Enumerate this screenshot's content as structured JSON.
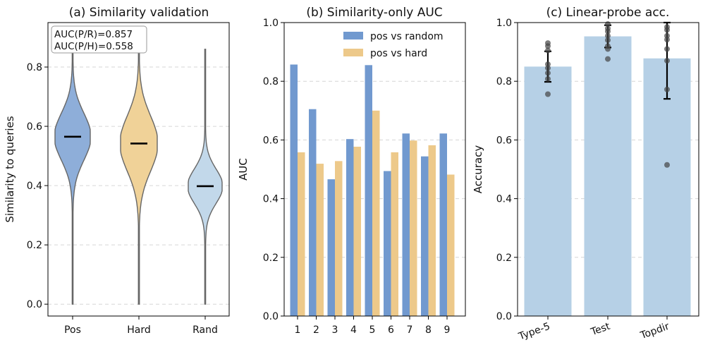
{
  "chart_data": [
    {
      "type": "violin",
      "title": "(a) Similarity validation",
      "xlabel": "",
      "ylabel": "Similarity to queries",
      "categories": [
        "Pos",
        "Hard",
        "Rand"
      ],
      "colors": [
        "#8eaed9",
        "#f0d298",
        "#c2d8ea"
      ],
      "medians": [
        0.565,
        0.542,
        0.398
      ],
      "ranges": [
        [
          0.0,
          0.9
        ],
        [
          0.0,
          0.88
        ],
        [
          0.0,
          0.86
        ]
      ],
      "ylim": [
        -0.04,
        0.95
      ],
      "yticks": [
        "0.0",
        "0.2",
        "0.4",
        "0.6",
        "0.8"
      ],
      "annotation": [
        "AUC(P/R)=0.857",
        "AUC(P/H)=0.558"
      ],
      "grid": true
    },
    {
      "type": "bar",
      "title": "(b) Similarity-only AUC",
      "xlabel": "",
      "ylabel": "AUC",
      "categories": [
        "1",
        "2",
        "3",
        "4",
        "5",
        "6",
        "7",
        "8",
        "9"
      ],
      "series": [
        {
          "name": "pos vs random",
          "color": "#7199cf",
          "values": [
            0.857,
            0.705,
            0.466,
            0.603,
            0.855,
            0.494,
            0.622,
            0.544,
            0.622
          ]
        },
        {
          "name": "pos vs hard",
          "color": "#edc98a",
          "values": [
            0.558,
            0.519,
            0.528,
            0.577,
            0.7,
            0.558,
            0.598,
            0.582,
            0.482
          ]
        }
      ],
      "ylim": [
        0.0,
        1.0
      ],
      "yticks": [
        "0.0",
        "0.2",
        "0.4",
        "0.6",
        "0.8",
        "1.0"
      ],
      "legend": "top-right",
      "grid": true
    },
    {
      "type": "bar",
      "title": "(c) Linear-probe acc.",
      "xlabel": "",
      "ylabel": "Accuracy",
      "categories": [
        "Type-5",
        "Test",
        "Topdir"
      ],
      "color": "#b6d0e6",
      "values": [
        0.85,
        0.953,
        0.878
      ],
      "errors": [
        0.052,
        0.038,
        0.138
      ],
      "points": [
        [
          0.756,
          0.808,
          0.828,
          0.845,
          0.858,
          0.905,
          0.92,
          0.93
        ],
        [
          0.876,
          0.91,
          0.92,
          0.94,
          0.955,
          0.97,
          0.98,
          0.995
        ],
        [
          0.515,
          0.772,
          0.87,
          0.91,
          0.942,
          0.955,
          0.975,
          0.985
        ]
      ],
      "ylim": [
        0.0,
        1.0
      ],
      "yticks": [
        "0.0",
        "0.2",
        "0.4",
        "0.6",
        "0.8",
        "1.0"
      ],
      "grid": true
    }
  ]
}
